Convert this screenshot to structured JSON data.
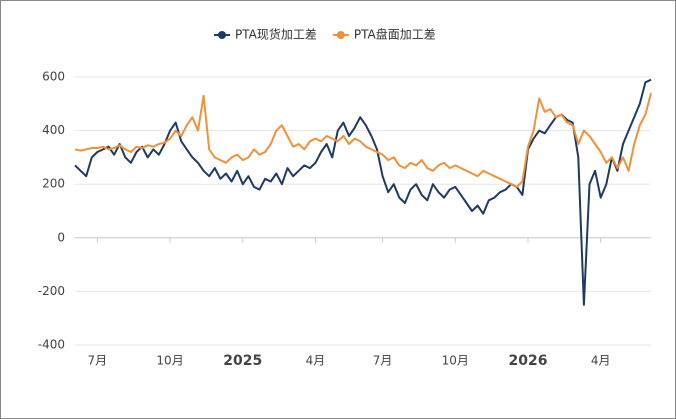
{
  "chart_data": {
    "type": "line",
    "categories": [
      null,
      null,
      null,
      null,
      "7月",
      null,
      null,
      null,
      null,
      null,
      null,
      null,
      null,
      null,
      null,
      null,
      null,
      "10月",
      null,
      null,
      null,
      null,
      null,
      null,
      null,
      null,
      null,
      null,
      null,
      null,
      "2025",
      null,
      null,
      null,
      null,
      null,
      null,
      null,
      null,
      null,
      null,
      null,
      null,
      "4月",
      null,
      null,
      null,
      null,
      null,
      null,
      null,
      null,
      null,
      null,
      null,
      "7月",
      null,
      null,
      null,
      null,
      null,
      null,
      null,
      null,
      null,
      null,
      null,
      null,
      "10月",
      null,
      null,
      null,
      null,
      null,
      null,
      null,
      null,
      null,
      null,
      null,
      null,
      "2026",
      null,
      null,
      null,
      null,
      null,
      null,
      null,
      null,
      null,
      null,
      null,
      null,
      "4月",
      null,
      null,
      null,
      null,
      null,
      null,
      null,
      null,
      null
    ],
    "series": [
      {
        "name": "PTA现货加工差",
        "color": "#1f3a60",
        "values": [
          270,
          250,
          230,
          300,
          320,
          330,
          340,
          310,
          350,
          300,
          280,
          320,
          340,
          300,
          330,
          310,
          350,
          400,
          430,
          360,
          330,
          300,
          280,
          250,
          230,
          260,
          220,
          240,
          210,
          250,
          200,
          230,
          190,
          180,
          220,
          210,
          240,
          200,
          260,
          230,
          250,
          270,
          260,
          280,
          320,
          350,
          300,
          400,
          430,
          380,
          410,
          450,
          420,
          380,
          330,
          230,
          170,
          200,
          150,
          130,
          180,
          200,
          160,
          140,
          200,
          170,
          150,
          180,
          190,
          160,
          130,
          100,
          120,
          90,
          140,
          150,
          170,
          180,
          200,
          190,
          160,
          330,
          370,
          400,
          390,
          420,
          450,
          460,
          440,
          430,
          300,
          -250,
          200,
          250,
          150,
          200,
          300,
          250,
          350,
          400,
          450,
          500,
          580,
          590
        ]
      },
      {
        "name": "PTA盘面加工差",
        "color": "#f0913a",
        "values": [
          330,
          325,
          330,
          335,
          335,
          340,
          330,
          335,
          345,
          330,
          320,
          340,
          335,
          345,
          340,
          350,
          355,
          370,
          400,
          380,
          420,
          450,
          400,
          530,
          330,
          300,
          290,
          280,
          300,
          310,
          290,
          300,
          330,
          310,
          320,
          350,
          400,
          420,
          380,
          340,
          350,
          330,
          360,
          370,
          360,
          380,
          370,
          360,
          380,
          350,
          370,
          360,
          340,
          330,
          320,
          310,
          290,
          300,
          270,
          260,
          280,
          270,
          290,
          260,
          250,
          270,
          280,
          260,
          270,
          260,
          250,
          240,
          230,
          250,
          240,
          230,
          220,
          210,
          200,
          190,
          210,
          340,
          400,
          520,
          470,
          480,
          450,
          460,
          430,
          420,
          350,
          400,
          380,
          350,
          320,
          280,
          300,
          260,
          300,
          250,
          350,
          420,
          460,
          540
        ]
      }
    ],
    "ylim": [
      -400,
      600
    ],
    "yticks": [
      -400,
      -200,
      0,
      200,
      400,
      600
    ],
    "grid": true
  }
}
